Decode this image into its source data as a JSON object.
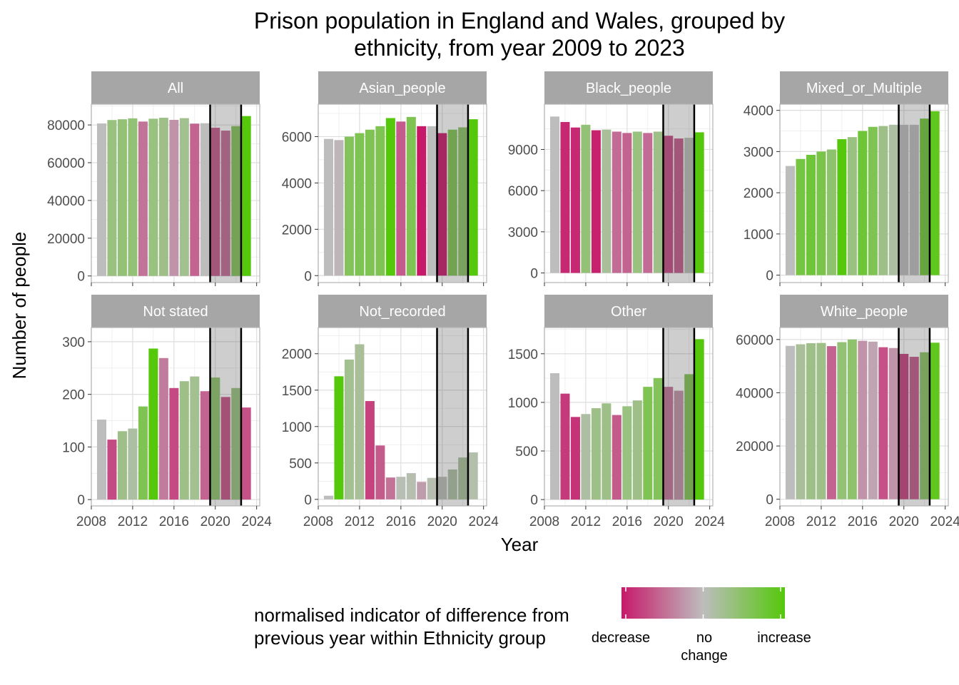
{
  "chart_data": {
    "type": "bar",
    "title_lines": [
      "Prison population in England and Wales, grouped by",
      "ethnicity, from year 2009 to 2023"
    ],
    "xlabel": "Year",
    "ylabel": "Number of people",
    "x_ticks": [
      2008,
      2012,
      2016,
      2020,
      2024
    ],
    "x_tick_labels": [
      "2008",
      "2012",
      "2016",
      "2020",
      "2024"
    ],
    "xlim": [
      2008.0,
      2024.3
    ],
    "shaded_interval": [
      2019.5,
      2022.5
    ],
    "grid": true,
    "legend": {
      "title_lines": [
        "normalised indicator of difference from",
        "previous year within Ethnicity group"
      ],
      "labels": [
        "decrease",
        "no\nchange",
        "increase"
      ],
      "colors": [
        "#c7196a",
        "#bdbdbd",
        "#55c80b"
      ],
      "position": "bottom"
    },
    "facets": [
      {
        "name": "All",
        "ylim": [
          -3500,
          91000
        ],
        "y_ticks": [
          0,
          20000,
          40000,
          60000,
          80000
        ],
        "y_tick_labels": [
          "0",
          "20000",
          "40000",
          "60000",
          "80000"
        ],
        "x": [
          2009,
          2010,
          2011,
          2012,
          2013,
          2014,
          2015,
          2016,
          2017,
          2018,
          2019,
          2020,
          2021,
          2022,
          2023
        ],
        "values": [
          80800,
          82600,
          83000,
          83500,
          81800,
          83300,
          83800,
          82700,
          83600,
          80700,
          80900,
          78500,
          77000,
          79400,
          84700
        ],
        "change_index": [
          0,
          0.35,
          0.4,
          0.4,
          -0.45,
          0.35,
          0.3,
          -0.25,
          0.25,
          -0.55,
          0,
          -0.6,
          -0.5,
          0.55,
          1
        ]
      },
      {
        "name": "Asian_people",
        "ylim": [
          -300,
          7400
        ],
        "y_ticks": [
          0,
          2000,
          4000,
          6000
        ],
        "y_tick_labels": [
          "0",
          "2000",
          "4000",
          "6000"
        ],
        "x": [
          2009,
          2010,
          2011,
          2012,
          2013,
          2014,
          2015,
          2016,
          2017,
          2018,
          2019,
          2020,
          2021,
          2022,
          2023
        ],
        "values": [
          5900,
          5850,
          6000,
          6150,
          6300,
          6450,
          6800,
          6650,
          6850,
          6450,
          6450,
          6150,
          6300,
          6400,
          6750
        ],
        "change_index": [
          0,
          -0.05,
          0.55,
          0.6,
          0.6,
          0.6,
          1,
          -0.6,
          0.6,
          -1,
          0,
          -1,
          0.6,
          0.5,
          1
        ]
      },
      {
        "name": "Black_people",
        "ylim": [
          -700,
          12300
        ],
        "y_ticks": [
          0,
          3000,
          6000,
          9000
        ],
        "y_tick_labels": [
          "0",
          "3000",
          "6000",
          "9000"
        ],
        "x": [
          2009,
          2010,
          2011,
          2012,
          2013,
          2014,
          2015,
          2016,
          2017,
          2018,
          2019,
          2020,
          2021,
          2022,
          2023
        ],
        "values": [
          11400,
          11000,
          10600,
          10800,
          10400,
          10450,
          10300,
          10200,
          10300,
          10200,
          10300,
          10000,
          9800,
          9850,
          10250
        ],
        "change_index": [
          0,
          -0.9,
          -0.9,
          0.4,
          -0.95,
          0.2,
          -0.5,
          -0.55,
          0.35,
          -0.5,
          0.3,
          -0.7,
          -0.6,
          0.05,
          1
        ]
      },
      {
        "name": "Mixed_or_Multiple",
        "ylim": [
          -180,
          4150
        ],
        "y_ticks": [
          0,
          1000,
          2000,
          3000,
          4000
        ],
        "y_tick_labels": [
          "0",
          "1000",
          "2000",
          "3000",
          "4000"
        ],
        "x": [
          2009,
          2010,
          2011,
          2012,
          2013,
          2014,
          2015,
          2016,
          2017,
          2018,
          2019,
          2020,
          2021,
          2022,
          2023
        ],
        "values": [
          2650,
          2820,
          2920,
          3000,
          3050,
          3300,
          3350,
          3500,
          3600,
          3620,
          3650,
          3650,
          3650,
          3800,
          3980
        ],
        "change_index": [
          0,
          0.7,
          0.75,
          0.65,
          0.45,
          1,
          0.35,
          0.75,
          0.6,
          0.3,
          0.15,
          0,
          0,
          0.75,
          0.9
        ]
      },
      {
        "name": "Not stated",
        "ylim": [
          -12,
          327
        ],
        "y_ticks": [
          0,
          100,
          200,
          300
        ],
        "y_tick_labels": [
          "0",
          "100",
          "200",
          "300"
        ],
        "x": [
          2009,
          2010,
          2011,
          2012,
          2013,
          2014,
          2015,
          2016,
          2017,
          2018,
          2019,
          2020,
          2021,
          2022,
          2023
        ],
        "values": [
          152,
          114,
          130,
          135,
          177,
          287,
          269,
          212,
          225,
          234,
          206,
          232,
          195,
          212,
          175
        ],
        "change_index": [
          0,
          -0.7,
          0.3,
          0.15,
          0.6,
          1,
          -0.4,
          -0.7,
          0.3,
          0.25,
          -0.55,
          0.45,
          -0.65,
          0.35,
          -0.65
        ]
      },
      {
        "name": "Not_recorded",
        "ylim": [
          -90,
          2360
        ],
        "y_ticks": [
          0,
          500,
          1000,
          1500,
          2000
        ],
        "y_tick_labels": [
          "0",
          "500",
          "1000",
          "1500",
          "2000"
        ],
        "x": [
          2009,
          2010,
          2011,
          2012,
          2013,
          2014,
          2015,
          2016,
          2017,
          2018,
          2019,
          2020,
          2021,
          2022,
          2023
        ],
        "values": [
          50,
          1690,
          1920,
          2130,
          1350,
          740,
          300,
          310,
          360,
          240,
          295,
          310,
          410,
          575,
          645
        ],
        "change_index": [
          0,
          1,
          0.25,
          0.2,
          -0.75,
          -0.6,
          -0.45,
          0.05,
          0.08,
          -0.2,
          0.08,
          0.03,
          0.15,
          0.2,
          0.1
        ]
      },
      {
        "name": "Other",
        "ylim": [
          -65,
          1770
        ],
        "y_ticks": [
          0,
          500,
          1000,
          1500
        ],
        "y_tick_labels": [
          "0",
          "500",
          "1000",
          "1500"
        ],
        "x": [
          2009,
          2010,
          2011,
          2012,
          2013,
          2014,
          2015,
          2016,
          2017,
          2018,
          2019,
          2020,
          2021,
          2022,
          2023
        ],
        "values": [
          1300,
          1090,
          850,
          880,
          940,
          990,
          870,
          960,
          1020,
          1160,
          1250,
          1160,
          1120,
          1290,
          1650
        ],
        "change_index": [
          0,
          -0.8,
          -0.85,
          0.15,
          0.3,
          0.3,
          -0.6,
          0.35,
          0.3,
          0.6,
          0.55,
          -0.45,
          -0.25,
          0.6,
          1
        ]
      },
      {
        "name": "White_people",
        "ylim": [
          -2500,
          64500
        ],
        "y_ticks": [
          0,
          20000,
          40000,
          60000
        ],
        "y_tick_labels": [
          "0",
          "20000",
          "40000",
          "60000"
        ],
        "x": [
          2009,
          2010,
          2011,
          2012,
          2013,
          2014,
          2015,
          2016,
          2017,
          2018,
          2019,
          2020,
          2021,
          2022,
          2023
        ],
        "values": [
          57600,
          58200,
          58600,
          58700,
          57500,
          59000,
          60000,
          59500,
          59200,
          57100,
          56800,
          54600,
          53500,
          55200,
          58800
        ],
        "change_index": [
          0,
          0.2,
          0.3,
          0.3,
          -0.55,
          0.4,
          0.45,
          -0.25,
          -0.15,
          -0.65,
          -0.25,
          -0.75,
          -0.6,
          0.5,
          0.9
        ]
      }
    ]
  }
}
